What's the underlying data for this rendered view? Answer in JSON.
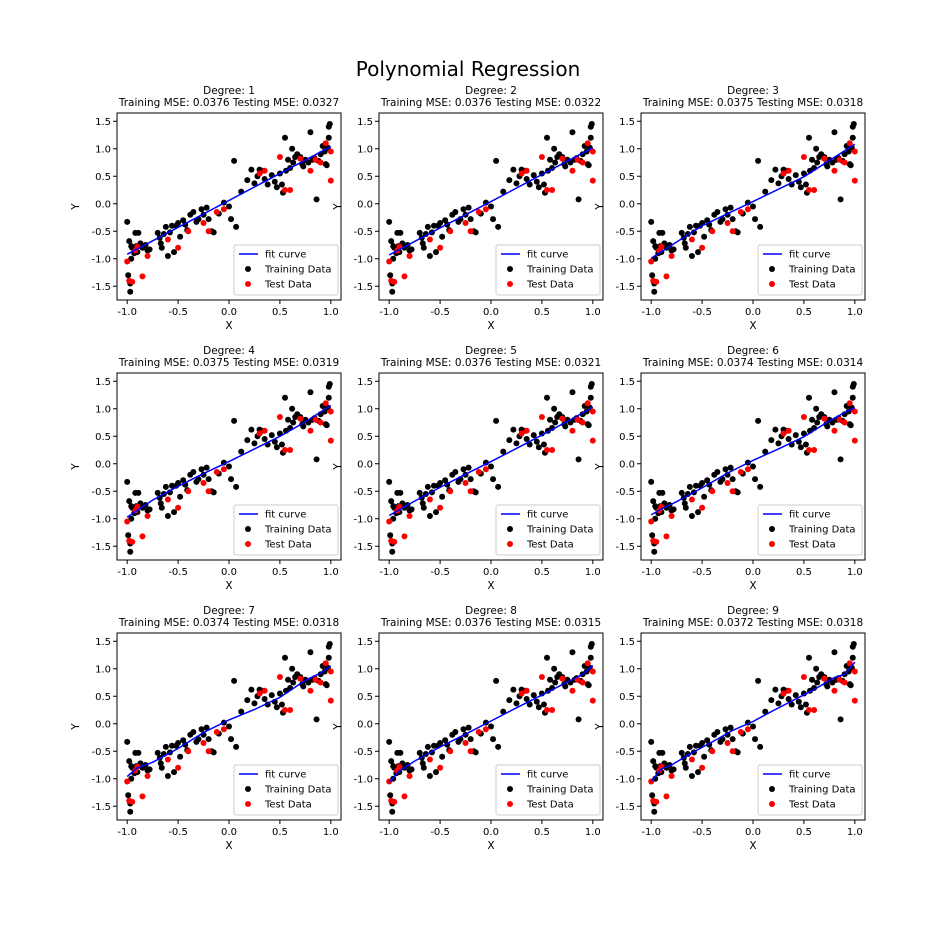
{
  "figure": {
    "title": "Polynomial Regression"
  },
  "chart_data": [
    {
      "type": "scatter",
      "title_line1": "Degree: 1",
      "title_line2": "Training MSE: 0.0376 Testing MSE: 0.0327",
      "xlabel": "X",
      "ylabel": "Y",
      "xlim": [
        -1.1,
        1.1
      ],
      "ylim": [
        -1.75,
        1.65
      ],
      "xticks": [
        "-1.0",
        "-0.5",
        "0.0",
        "0.5",
        "1.0"
      ],
      "yticks": [
        "-1.5",
        "-1.0",
        "-0.5",
        "0.0",
        "0.5",
        "1.0",
        "1.5"
      ],
      "legend": {
        "position": "lower-right",
        "entries": [
          "fit curve",
          "Training Data",
          "Test Data"
        ]
      },
      "fit_curve": {
        "x": [
          -1.0,
          1.0
        ],
        "y": [
          -0.92,
          1.04
        ]
      }
    },
    {
      "type": "scatter",
      "title_line1": "Degree: 2",
      "title_line2": "Training MSE: 0.0376 Testing MSE: 0.0322",
      "xlabel": "X",
      "ylabel": "Y",
      "xlim": [
        -1.1,
        1.1
      ],
      "ylim": [
        -1.75,
        1.65
      ],
      "xticks": [
        "-1.0",
        "-0.5",
        "0.0",
        "0.5",
        "1.0"
      ],
      "yticks": [
        "-1.5",
        "-1.0",
        "-0.5",
        "0.0",
        "0.5",
        "1.0",
        "1.5"
      ],
      "legend": {
        "position": "lower-right",
        "entries": [
          "fit curve",
          "Training Data",
          "Test Data"
        ]
      },
      "fit_curve": {
        "x": [
          -1.0,
          -0.5,
          0.0,
          0.5,
          1.0
        ],
        "y": [
          -0.93,
          -0.44,
          0.04,
          0.53,
          1.02
        ]
      }
    },
    {
      "type": "scatter",
      "title_line1": "Degree: 3",
      "title_line2": "Training MSE: 0.0375 Testing MSE: 0.0318",
      "xlabel": "X",
      "ylabel": "Y",
      "xlim": [
        -1.1,
        1.1
      ],
      "ylim": [
        -1.75,
        1.65
      ],
      "xticks": [
        "-1.0",
        "-0.5",
        "0.0",
        "0.5",
        "1.0"
      ],
      "yticks": [
        "-1.5",
        "-1.0",
        "-0.5",
        "0.0",
        "0.5",
        "1.0",
        "1.5"
      ],
      "legend": {
        "position": "lower-right",
        "entries": [
          "fit curve",
          "Training Data",
          "Test Data"
        ]
      },
      "fit_curve": {
        "x": [
          -1.0,
          -0.5,
          0.0,
          0.5,
          1.0
        ],
        "y": [
          -0.99,
          -0.4,
          0.04,
          0.49,
          1.08
        ]
      }
    },
    {
      "type": "scatter",
      "title_line1": "Degree: 4",
      "title_line2": "Training MSE: 0.0375 Testing MSE: 0.0319",
      "xlabel": "X",
      "ylabel": "Y",
      "xlim": [
        -1.1,
        1.1
      ],
      "ylim": [
        -1.75,
        1.65
      ],
      "xticks": [
        "-1.0",
        "-0.5",
        "0.0",
        "0.5",
        "1.0"
      ],
      "yticks": [
        "-1.5",
        "-1.0",
        "-0.5",
        "0.0",
        "0.5",
        "1.0",
        "1.5"
      ],
      "legend": {
        "position": "lower-right",
        "entries": [
          "fit curve",
          "Training Data",
          "Test Data"
        ]
      },
      "fit_curve": {
        "x": [
          -1.0,
          -0.75,
          -0.5,
          -0.25,
          0.0,
          0.25,
          0.5,
          0.75,
          1.0
        ],
        "y": [
          -0.97,
          -0.66,
          -0.41,
          -0.18,
          0.04,
          0.27,
          0.5,
          0.76,
          1.06
        ]
      }
    },
    {
      "type": "scatter",
      "title_line1": "Degree: 5",
      "title_line2": "Training MSE: 0.0376 Testing MSE: 0.0321",
      "xlabel": "X",
      "ylabel": "Y",
      "xlim": [
        -1.1,
        1.1
      ],
      "ylim": [
        -1.75,
        1.65
      ],
      "xticks": [
        "-1.0",
        "-0.5",
        "0.0",
        "0.5",
        "1.0"
      ],
      "yticks": [
        "-1.5",
        "-1.0",
        "-0.5",
        "0.0",
        "0.5",
        "1.0",
        "1.5"
      ],
      "legend": {
        "position": "lower-right",
        "entries": [
          "fit curve",
          "Training Data",
          "Test Data"
        ]
      },
      "fit_curve": {
        "x": [
          -1.0,
          -0.75,
          -0.5,
          -0.25,
          0.0,
          0.25,
          0.5,
          0.75,
          1.0
        ],
        "y": [
          -0.94,
          -0.68,
          -0.43,
          -0.19,
          0.04,
          0.28,
          0.52,
          0.77,
          1.03
        ]
      }
    },
    {
      "type": "scatter",
      "title_line1": "Degree: 6",
      "title_line2": "Training MSE: 0.0374 Testing MSE: 0.0314",
      "xlabel": "X",
      "ylabel": "Y",
      "xlim": [
        -1.1,
        1.1
      ],
      "ylim": [
        -1.75,
        1.65
      ],
      "xticks": [
        "-1.0",
        "-0.5",
        "0.0",
        "0.5",
        "1.0"
      ],
      "yticks": [
        "-1.5",
        "-1.0",
        "-0.5",
        "0.0",
        "0.5",
        "1.0",
        "1.5"
      ],
      "legend": {
        "position": "lower-right",
        "entries": [
          "fit curve",
          "Training Data",
          "Test Data"
        ]
      },
      "fit_curve": {
        "x": [
          -1.0,
          -0.9,
          -0.75,
          -0.5,
          -0.25,
          0.0,
          0.25,
          0.5,
          0.75,
          0.9,
          1.0
        ],
        "y": [
          -0.93,
          -0.82,
          -0.69,
          -0.44,
          -0.17,
          0.06,
          0.27,
          0.49,
          0.78,
          0.93,
          1.02
        ]
      }
    },
    {
      "type": "scatter",
      "title_line1": "Degree: 7",
      "title_line2": "Training MSE: 0.0374 Testing MSE: 0.0318",
      "xlabel": "X",
      "ylabel": "Y",
      "xlim": [
        -1.1,
        1.1
      ],
      "ylim": [
        -1.75,
        1.65
      ],
      "xticks": [
        "-1.0",
        "-0.5",
        "0.0",
        "0.5",
        "1.0"
      ],
      "yticks": [
        "-1.5",
        "-1.0",
        "-0.5",
        "0.0",
        "0.5",
        "1.0",
        "1.5"
      ],
      "legend": {
        "position": "lower-right",
        "entries": [
          "fit curve",
          "Training Data",
          "Test Data"
        ]
      },
      "fit_curve": {
        "x": [
          -1.0,
          -0.9,
          -0.75,
          -0.5,
          -0.25,
          0.0,
          0.25,
          0.5,
          0.75,
          0.9,
          1.0
        ],
        "y": [
          -0.96,
          -0.8,
          -0.7,
          -0.45,
          -0.16,
          0.07,
          0.26,
          0.48,
          0.79,
          0.92,
          1.05
        ]
      }
    },
    {
      "type": "scatter",
      "title_line1": "Degree: 8",
      "title_line2": "Training MSE: 0.0376 Testing MSE: 0.0315",
      "xlabel": "X",
      "ylabel": "Y",
      "xlim": [
        -1.1,
        1.1
      ],
      "ylim": [
        -1.75,
        1.65
      ],
      "xticks": [
        "-1.0",
        "-0.5",
        "0.0",
        "0.5",
        "1.0"
      ],
      "yticks": [
        "-1.5",
        "-1.0",
        "-0.5",
        "0.0",
        "0.5",
        "1.0",
        "1.5"
      ],
      "legend": {
        "position": "lower-right",
        "entries": [
          "fit curve",
          "Training Data",
          "Test Data"
        ]
      },
      "fit_curve": {
        "x": [
          -1.0,
          -0.9,
          -0.75,
          -0.5,
          -0.25,
          0.0,
          0.25,
          0.5,
          0.75,
          0.9,
          1.0
        ],
        "y": [
          -1.06,
          -0.86,
          -0.68,
          -0.42,
          -0.19,
          0.05,
          0.29,
          0.52,
          0.76,
          0.9,
          1.06
        ]
      }
    },
    {
      "type": "scatter",
      "title_line1": "Degree: 9",
      "title_line2": "Training MSE: 0.0372 Testing MSE: 0.0318",
      "xlabel": "X",
      "ylabel": "Y",
      "xlim": [
        -1.1,
        1.1
      ],
      "ylim": [
        -1.75,
        1.65
      ],
      "xticks": [
        "-1.0",
        "-0.5",
        "0.0",
        "0.5",
        "1.0"
      ],
      "yticks": [
        "-1.5",
        "-1.0",
        "-0.5",
        "0.0",
        "0.5",
        "1.0",
        "1.5"
      ],
      "legend": {
        "position": "lower-right",
        "entries": [
          "fit curve",
          "Training Data",
          "Test Data"
        ]
      },
      "fit_curve": {
        "x": [
          -1.0,
          -0.9,
          -0.8,
          -0.6,
          -0.4,
          -0.2,
          0.0,
          0.2,
          0.4,
          0.6,
          0.8,
          0.9,
          1.0
        ],
        "y": [
          -1.05,
          -0.82,
          -0.75,
          -0.53,
          -0.33,
          -0.12,
          0.04,
          0.24,
          0.43,
          0.62,
          0.84,
          0.9,
          1.12
        ]
      }
    }
  ],
  "shared_data": {
    "training": {
      "x": [
        -1.0,
        -0.99,
        -0.98,
        -0.97,
        -0.97,
        -0.96,
        -0.96,
        -0.95,
        -0.93,
        -0.92,
        -0.91,
        -0.9,
        -0.89,
        -0.87,
        -0.85,
        -0.82,
        -0.8,
        -0.78,
        -0.7,
        -0.68,
        -0.67,
        -0.66,
        -0.64,
        -0.62,
        -0.6,
        -0.58,
        -0.56,
        -0.54,
        -0.52,
        -0.5,
        -0.48,
        -0.45,
        -0.43,
        -0.41,
        -0.38,
        -0.35,
        -0.32,
        -0.3,
        -0.27,
        -0.25,
        -0.22,
        -0.2,
        -0.17,
        -0.15,
        -0.1,
        -0.05,
        0.0,
        0.02,
        0.05,
        0.07,
        0.12,
        0.18,
        0.22,
        0.25,
        0.28,
        0.3,
        0.33,
        0.35,
        0.38,
        0.42,
        0.45,
        0.47,
        0.5,
        0.52,
        0.53,
        0.55,
        0.56,
        0.58,
        0.6,
        0.62,
        0.63,
        0.65,
        0.67,
        0.7,
        0.72,
        0.73,
        0.75,
        0.78,
        0.8,
        0.82,
        0.84,
        0.86,
        0.88,
        0.9,
        0.92,
        0.94,
        0.95,
        0.96,
        0.97,
        0.98,
        0.98,
        0.99
      ],
      "y": [
        -0.33,
        -1.3,
        -0.68,
        -1.45,
        -1.6,
        -1.0,
        -0.77,
        -0.8,
        -0.9,
        -0.53,
        -0.77,
        -0.88,
        -0.53,
        -0.72,
        -0.8,
        -0.75,
        -0.85,
        -0.83,
        -0.53,
        -0.62,
        -0.72,
        -0.8,
        -0.55,
        -0.42,
        -0.95,
        -0.52,
        -0.4,
        -0.88,
        -0.4,
        -0.35,
        -0.6,
        -0.3,
        -0.38,
        -0.48,
        -0.2,
        -0.15,
        -0.33,
        -0.28,
        -0.1,
        -0.2,
        -0.07,
        -0.28,
        -0.5,
        -0.52,
        -0.18,
        0.02,
        -0.05,
        -0.28,
        0.78,
        -0.42,
        0.22,
        0.43,
        0.62,
        0.37,
        0.5,
        0.62,
        0.6,
        0.45,
        0.35,
        0.52,
        0.4,
        0.3,
        0.55,
        0.35,
        0.2,
        1.2,
        0.6,
        0.8,
        0.65,
        1.0,
        0.75,
        0.85,
        0.9,
        0.85,
        0.72,
        0.68,
        0.8,
        0.75,
        1.3,
        0.8,
        0.83,
        0.08,
        0.78,
        0.9,
        1.05,
        0.95,
        0.72,
        0.7,
        1.02,
        1.2,
        1.4,
        1.45
      ]
    },
    "test": {
      "x": [
        -1.0,
        -0.98,
        -0.95,
        -0.92,
        -0.9,
        -0.85,
        -0.8,
        -0.6,
        -0.5,
        -0.4,
        -0.25,
        -0.2,
        -0.12,
        -0.05,
        0.3,
        0.35,
        0.5,
        0.55,
        0.6,
        0.7,
        0.8,
        0.85,
        0.9,
        0.95,
        1.0,
        1.0
      ],
      "y": [
        -1.05,
        -1.4,
        -1.42,
        -0.85,
        -0.78,
        -1.32,
        -0.95,
        -0.65,
        -0.8,
        -0.5,
        -0.35,
        -0.5,
        -0.15,
        -0.1,
        0.55,
        0.6,
        0.85,
        0.25,
        0.25,
        0.82,
        0.6,
        0.8,
        0.75,
        1.1,
        0.42,
        0.95
      ]
    }
  },
  "colors": {
    "fit_curve": "#0000ff",
    "training": "#000000",
    "test": "#ff0000",
    "axes": "#000000",
    "legend_border": "#cccccc"
  }
}
